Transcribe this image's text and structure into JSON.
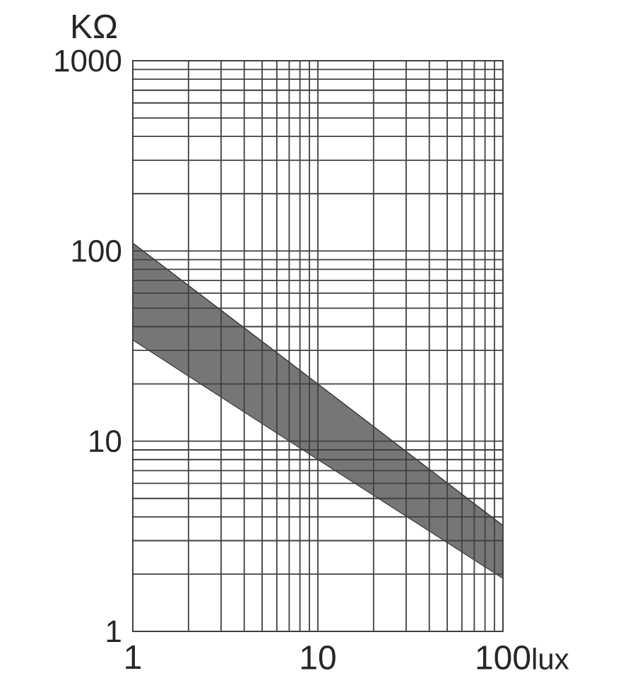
{
  "chart_data": {
    "type": "line",
    "xlabel": "lux",
    "ylabel": "KΩ",
    "x": [
      1,
      10,
      100
    ],
    "series": [
      {
        "color": "#3c3c3c",
        "values": [
          110,
          20,
          3.6
        ],
        "lower": [
          34,
          8,
          1.9
        ],
        "upper": [
          110,
          20,
          3.6
        ]
      }
    ],
    "log": "xy",
    "xlim": [
      1,
      100
    ],
    "ylim": [
      1,
      1000
    ],
    "xticks": [
      1,
      10,
      100
    ],
    "yticks": [
      1,
      10,
      100,
      1000
    ],
    "grid": true
  }
}
